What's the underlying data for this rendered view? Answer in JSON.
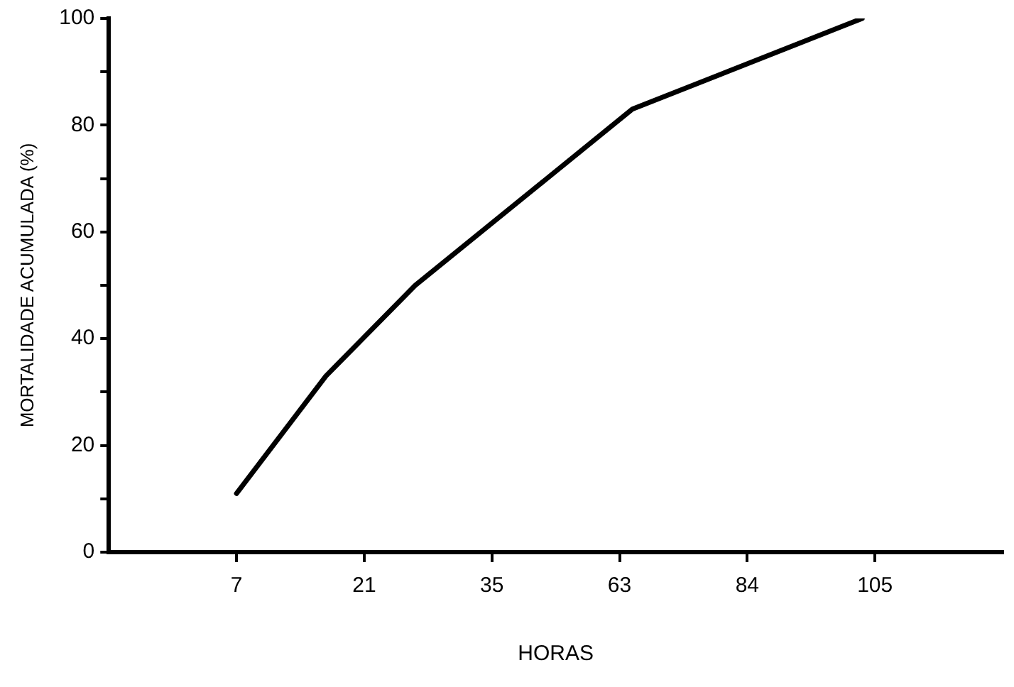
{
  "chart_data": {
    "type": "line",
    "xlabel": "HORAS",
    "ylabel": "MORTALIDADE ACUMULADA (%)",
    "categories": [
      null,
      null,
      null,
      null,
      null,
      null,
      null,
      null,
      null,
      null,
      "7",
      null,
      null,
      null,
      null,
      null,
      null,
      null,
      null,
      null,
      "21",
      null,
      null,
      null,
      null,
      null,
      null,
      null,
      null,
      null,
      "35",
      null,
      null,
      null,
      null,
      null,
      null,
      null,
      null,
      null,
      "63",
      null,
      null,
      null,
      null,
      null,
      null,
      null,
      null,
      null,
      "84",
      null,
      null,
      null,
      null,
      null,
      null,
      null,
      null,
      null,
      "105",
      null,
      null,
      null,
      null,
      null,
      null,
      null,
      null,
      null,
      null
    ],
    "series": [
      {
        "color": "#000000",
        "values": [
          null,
          null,
          null,
          null,
          null,
          null,
          null,
          null,
          null,
          null,
          11,
          null,
          null,
          null,
          null,
          null,
          null,
          33,
          null,
          null,
          null,
          null,
          null,
          null,
          50,
          null,
          null,
          null,
          null,
          null,
          null,
          null,
          null,
          null,
          null,
          null,
          null,
          null,
          null,
          null,
          null,
          83,
          null,
          null,
          null,
          null,
          null,
          null,
          null,
          null,
          null,
          null,
          null,
          null,
          null,
          null,
          null,
          null,
          null,
          100,
          null,
          null,
          null,
          null,
          null,
          null,
          null,
          null,
          null,
          null,
          null
        ]
      }
    ],
    "ylim": [
      0,
      100
    ],
    "yticks": [
      0,
      {
        "value": 10,
        "label": null
      },
      20,
      {
        "value": 30,
        "label": null
      },
      40,
      {
        "value": 50,
        "label": null
      },
      60,
      {
        "value": 70,
        "label": null
      },
      80,
      {
        "value": 90,
        "label": null
      },
      100
    ],
    "grid": false,
    "legend": false,
    "marker": "none",
    "line_style": "solid"
  }
}
